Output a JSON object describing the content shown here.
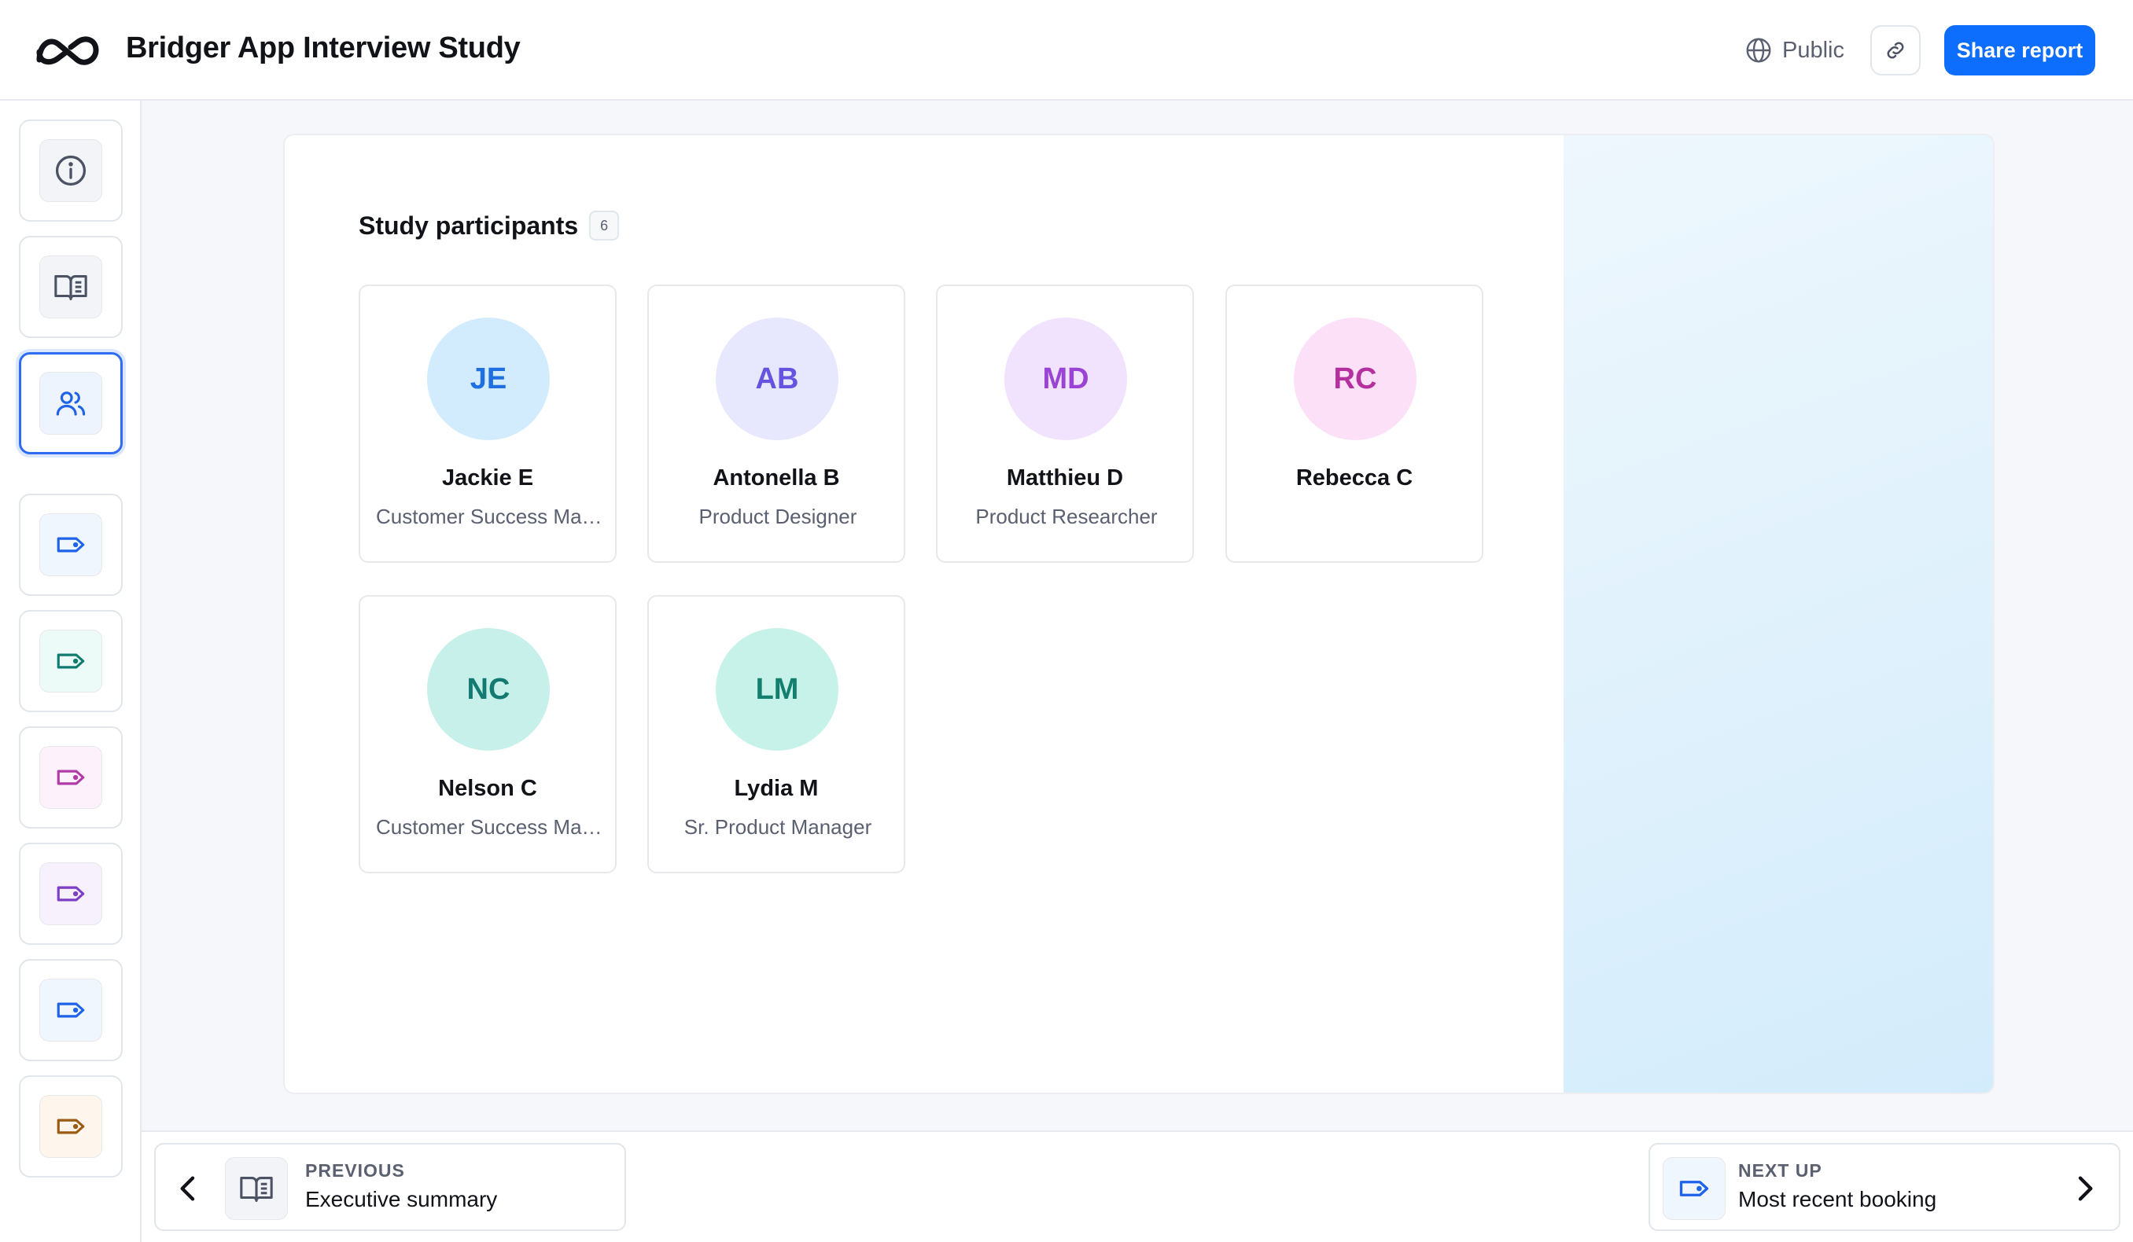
{
  "header": {
    "title": "Bridger App Interview Study",
    "visibility": "Public",
    "share_label": "Share report",
    "logo_icon": "infinity-logo-icon",
    "copy_link_icon": "link-icon",
    "globe_icon": "globe-icon"
  },
  "rail": {
    "items": [
      {
        "icon": "info-icon",
        "color": "#4b5263",
        "active": false
      },
      {
        "icon": "book-icon",
        "color": "#4b5263",
        "active": false
      },
      {
        "icon": "users-icon",
        "color": "#1f63e8",
        "active": true
      },
      {
        "icon": "tag-icon",
        "color": "#1f63e8",
        "active": false
      },
      {
        "icon": "tag-icon",
        "color": "#0f7b6f",
        "active": false
      },
      {
        "icon": "tag-icon",
        "color": "#b03aa6",
        "active": false
      },
      {
        "icon": "tag-icon",
        "color": "#7b3ec4",
        "active": false
      },
      {
        "icon": "tag-icon",
        "color": "#1f63e8",
        "active": false
      },
      {
        "icon": "tag-icon",
        "color": "#9a5a12",
        "active": false
      }
    ]
  },
  "section": {
    "title": "Study participants",
    "count": "6"
  },
  "participants": [
    {
      "initials": "JE",
      "name": "Jackie E",
      "role": "Customer Success Manager",
      "bg": "#d3ecfd",
      "fg": "#1f6fe0"
    },
    {
      "initials": "AB",
      "name": "Antonella B",
      "role": "Product Designer",
      "bg": "#e7e7fd",
      "fg": "#6753df"
    },
    {
      "initials": "MD",
      "name": "Matthieu D",
      "role": "Product Researcher",
      "bg": "#f1e2fd",
      "fg": "#9a44d6"
    },
    {
      "initials": "RC",
      "name": "Rebecca C",
      "role": "",
      "bg": "#fce0f7",
      "fg": "#b4309f"
    },
    {
      "initials": "NC",
      "name": "Nelson C",
      "role": "Customer Success Manager",
      "bg": "#c7f0ea",
      "fg": "#137a72"
    },
    {
      "initials": "LM",
      "name": "Lydia M",
      "role": "Sr. Product Manager",
      "bg": "#c7f2ea",
      "fg": "#13806f"
    }
  ],
  "footer": {
    "prev": {
      "kicker": "PREVIOUS",
      "label": "Executive summary",
      "icon": "book-icon"
    },
    "next": {
      "kicker": "NEXT UP",
      "label": "Most recent booking",
      "icon": "tag-icon"
    }
  }
}
